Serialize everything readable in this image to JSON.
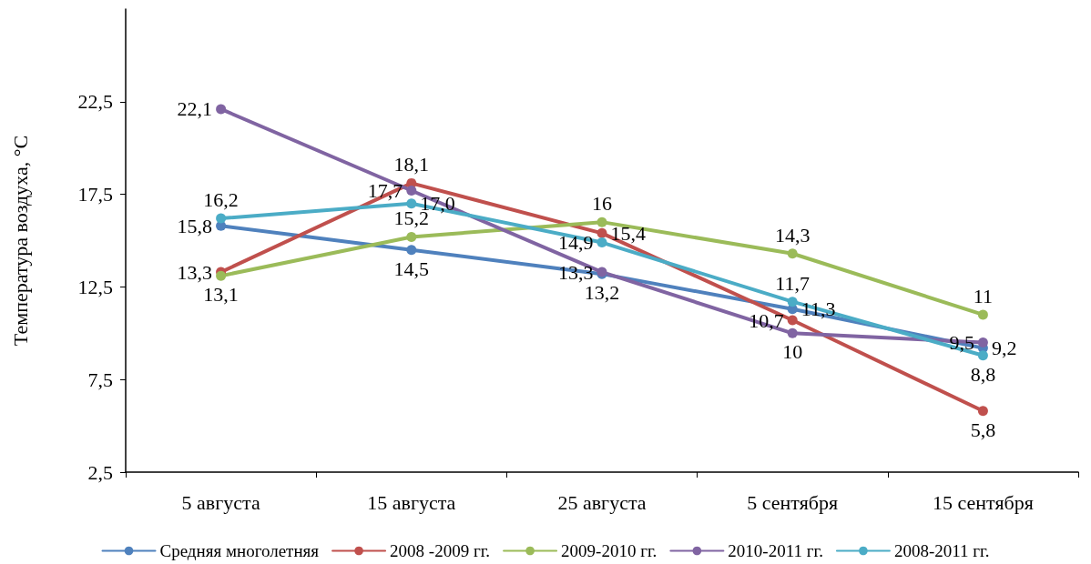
{
  "chart_data": {
    "type": "line",
    "ylabel": "Температура воздуха, °С",
    "categories": [
      "5 августа",
      "15 августа",
      "25 августа",
      "5 сентября",
      "15 сентября"
    ],
    "ylim": [
      2.5,
      27.5
    ],
    "yticks": [
      {
        "value": 2.5,
        "label": "2,5"
      },
      {
        "value": 7.5,
        "label": "7,5"
      },
      {
        "value": 12.5,
        "label": "12,5"
      },
      {
        "value": 17.5,
        "label": "17,5"
      },
      {
        "value": 22.5,
        "label": "22,5"
      }
    ],
    "grid": false,
    "legend": "bottom",
    "marker": "circle",
    "line_style": "solid",
    "series": [
      {
        "name": "Средняя многолетняя",
        "color": "#4f81bd",
        "values": [
          15.8,
          14.5,
          13.2,
          11.3,
          9.2
        ],
        "value_labels": [
          "15,8",
          "14,5",
          "13,2",
          "11,3",
          "9,2"
        ]
      },
      {
        "name": "2008 -2009 гг.",
        "color": "#c0504d",
        "values": [
          13.3,
          18.1,
          15.4,
          10.7,
          5.8
        ],
        "value_labels": [
          "13,3",
          "18,1",
          "15,4",
          "10,7",
          "5,8"
        ]
      },
      {
        "name": "2009-2010 гг.",
        "color": "#9bbb59",
        "values": [
          13.1,
          15.2,
          16,
          14.3,
          11
        ],
        "value_labels": [
          "13,1",
          "15,2",
          "16",
          "14,3",
          "11"
        ]
      },
      {
        "name": "2010-2011 гг.",
        "color": "#8064a2",
        "values": [
          22.1,
          17.7,
          13.3,
          10,
          9.5
        ],
        "value_labels": [
          "22,1",
          "17,7",
          "13,3",
          "10",
          "9,5"
        ]
      },
      {
        "name": "2008-2011 гг.",
        "color": "#4bacc6",
        "values": [
          16.2,
          17,
          14.9,
          11.7,
          8.8
        ],
        "value_labels": [
          "16,2",
          "17,0",
          "14,9",
          "11,7",
          "8,8"
        ]
      }
    ]
  }
}
